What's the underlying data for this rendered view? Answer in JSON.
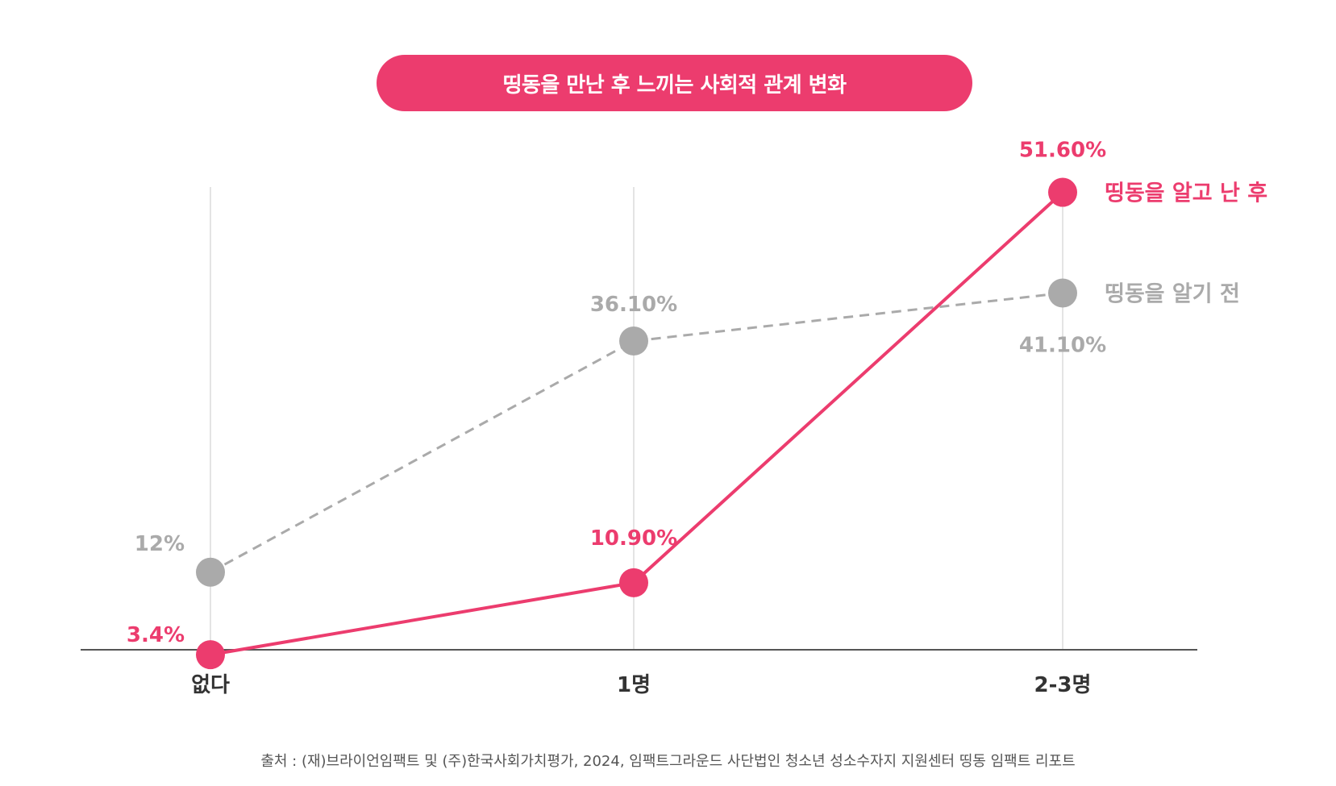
{
  "chart_data": {
    "type": "line",
    "title": "띵동을 만난 후 느끼는 사회적 관계 변화",
    "categories": [
      "없다",
      "1명",
      "2-3명"
    ],
    "series": [
      {
        "name": "띵동을 알고 난 후",
        "values": [
          3.4,
          10.9,
          51.6
        ],
        "labels": [
          "3.4%",
          "10.90%",
          "51.60%"
        ],
        "color": "#ec3c6e",
        "style": "solid"
      },
      {
        "name": "띵동을 알기 전",
        "values": [
          12,
          36.1,
          41.1
        ],
        "labels": [
          "12%",
          "36.10%",
          "41.10%"
        ],
        "color": "#aaaaaa",
        "style": "dashed"
      }
    ],
    "xlabel": "",
    "ylabel": "",
    "legend_position": "right",
    "grid": "vertical"
  },
  "source_note": "출처 : (재)브라이언임팩트 및 (주)한국사회가치평가, 2024, 임팩트그라운드 사단법인 청소년 성소수자지 지원센터 띵동 임팩트 리포트",
  "colors": {
    "accent": "#ec3c6e",
    "muted": "#aaaaaa",
    "axis": "#555555",
    "text": "#333333"
  }
}
